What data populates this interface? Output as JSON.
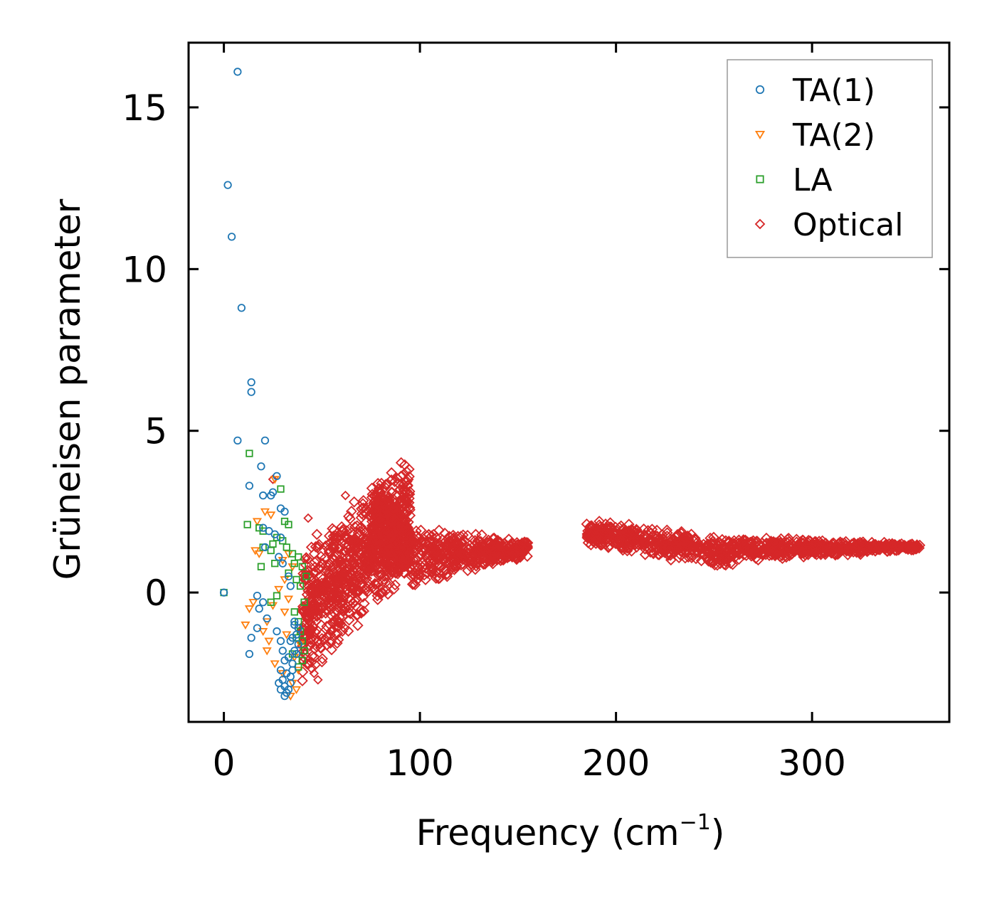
{
  "chart_data": {
    "type": "scatter",
    "title": "",
    "xlabel": "Frequency (cm",
    "xlabel_sup": "−1",
    "xlabel_close": ")",
    "ylabel": "Grüneisen parameter",
    "xlim": [
      -18,
      370
    ],
    "ylim": [
      -4,
      17
    ],
    "xticks": [
      0,
      100,
      200,
      300
    ],
    "yticks": [
      0,
      5,
      10,
      15
    ],
    "legend_position": "top-right",
    "series": [
      {
        "name": "TA(1)",
        "marker": "circle",
        "color": "#1f77b4",
        "points": [
          [
            7,
            16.1
          ],
          [
            2,
            12.6
          ],
          [
            4,
            11
          ],
          [
            9,
            8.8
          ],
          [
            14,
            6.5
          ],
          [
            14,
            6.2
          ],
          [
            7,
            4.7
          ],
          [
            21,
            4.7
          ],
          [
            19,
            3.9
          ],
          [
            13,
            3.3
          ],
          [
            27,
            3.6
          ],
          [
            25,
            3.1
          ],
          [
            24,
            3.0
          ],
          [
            20,
            3.0
          ],
          [
            29,
            2.6
          ],
          [
            31,
            2.5
          ],
          [
            20,
            2.0
          ],
          [
            23,
            1.9
          ],
          [
            26,
            1.8
          ],
          [
            29,
            1.7
          ],
          [
            21,
            1.4
          ],
          [
            28,
            1.1
          ],
          [
            30,
            0.9
          ],
          [
            33,
            0.5
          ],
          [
            34,
            0.2
          ],
          [
            0,
            0
          ],
          [
            17,
            -0.1
          ],
          [
            20,
            -0.3
          ],
          [
            18,
            -0.5
          ],
          [
            22,
            -0.8
          ],
          [
            17,
            -1.1
          ],
          [
            14,
            -1.4
          ],
          [
            13,
            -1.9
          ],
          [
            27,
            -1.2
          ],
          [
            29,
            -1.5
          ],
          [
            30,
            -1.8
          ],
          [
            31,
            -2.1
          ],
          [
            29,
            -2.4
          ],
          [
            30,
            -2.7
          ],
          [
            31,
            -2.9
          ],
          [
            32,
            -3.1
          ],
          [
            33,
            -3.0
          ],
          [
            34,
            -2.6
          ],
          [
            35,
            -2.2
          ],
          [
            36,
            -1.8
          ],
          [
            35,
            -1.4
          ],
          [
            36,
            -1.0
          ],
          [
            34,
            -1.5
          ],
          [
            33,
            -2.0
          ],
          [
            32,
            -2.5
          ],
          [
            28,
            -2.8
          ],
          [
            29,
            -3.0
          ],
          [
            31,
            -3.2
          ],
          [
            34,
            -2.8
          ],
          [
            35,
            -2.4
          ],
          [
            37,
            -1.9
          ],
          [
            37,
            -1.3
          ],
          [
            36,
            -0.9
          ],
          [
            38,
            -1.1
          ],
          [
            38,
            -1.6
          ]
        ]
      },
      {
        "name": "TA(2)",
        "marker": "triangle-down",
        "color": "#ff7f0e",
        "points": [
          [
            26,
            3.5
          ],
          [
            21,
            2.5
          ],
          [
            17,
            2.2
          ],
          [
            24,
            2.4
          ],
          [
            16,
            1.3
          ],
          [
            18,
            1.2
          ],
          [
            30,
            1.0
          ],
          [
            33,
            1.2
          ],
          [
            35,
            0.8
          ],
          [
            31,
            0.4
          ],
          [
            28,
            0.1
          ],
          [
            33,
            -0.2
          ],
          [
            15,
            -0.3
          ],
          [
            13,
            -0.5
          ],
          [
            25,
            -0.4
          ],
          [
            31,
            -0.6
          ],
          [
            22,
            -0.9
          ],
          [
            11,
            -1.0
          ],
          [
            20,
            -1.2
          ],
          [
            23,
            -1.5
          ],
          [
            22,
            -1.8
          ],
          [
            26,
            -2.2
          ],
          [
            30,
            -2.5
          ],
          [
            35,
            -2.8
          ],
          [
            37,
            -3.0
          ],
          [
            34,
            -3.2
          ],
          [
            36,
            -2.0
          ],
          [
            39,
            -1.6
          ],
          [
            38,
            -2.4
          ],
          [
            32,
            -1.3
          ]
        ]
      },
      {
        "name": "LA",
        "marker": "square",
        "color": "#2ca02c",
        "points": [
          [
            0,
            0
          ],
          [
            13,
            4.3
          ],
          [
            29,
            3.2
          ],
          [
            31,
            2.2
          ],
          [
            33,
            2.1
          ],
          [
            12,
            2.1
          ],
          [
            18,
            2.0
          ],
          [
            20,
            1.9
          ],
          [
            27,
            1.7
          ],
          [
            30,
            1.6
          ],
          [
            25,
            1.5
          ],
          [
            20,
            1.4
          ],
          [
            32,
            1.4
          ],
          [
            24,
            1.3
          ],
          [
            35,
            1.2
          ],
          [
            38,
            1.1
          ],
          [
            36,
            0.9
          ],
          [
            19,
            0.8
          ],
          [
            26,
            0.9
          ],
          [
            33,
            0.6
          ],
          [
            37,
            0.4
          ],
          [
            39,
            0.2
          ],
          [
            27,
            -0.1
          ],
          [
            24,
            -0.3
          ],
          [
            36,
            -0.6
          ],
          [
            38,
            -0.9
          ],
          [
            39,
            -1.2
          ],
          [
            40,
            -1.5
          ],
          [
            41,
            -1.8
          ],
          [
            40,
            -2.1
          ],
          [
            38,
            -2.3
          ],
          [
            35,
            -1.9
          ],
          [
            37,
            -1.4
          ],
          [
            41,
            -0.3
          ],
          [
            40,
            0.8
          ],
          [
            42,
            0.5
          ]
        ]
      },
      {
        "name": "Optical",
        "marker": "diamond",
        "color": "#d62728",
        "points": [
          [
            25,
            3.5
          ],
          [
            43,
            2.3
          ],
          [
            62,
            3.0
          ],
          [
            42,
            1.1
          ],
          [
            45,
            -0.4
          ],
          [
            44,
            -1.3
          ],
          [
            46,
            -2.5
          ],
          [
            48,
            -2.7
          ],
          [
            50,
            -1.4
          ],
          [
            55,
            -1.2
          ],
          [
            60,
            -1.0
          ],
          [
            64,
            -0.5
          ],
          [
            68,
            -0.2
          ],
          [
            70,
            0.6
          ],
          [
            77,
            0.3
          ],
          [
            80,
            1.0
          ]
        ],
        "clouds": [
          {
            "x": [
              40,
              95
            ],
            "y_lo": [
              -2.9,
              0.5
            ],
            "y_hi": [
              1.5,
              4.4
            ],
            "n": 900
          },
          {
            "x": [
              75,
              95
            ],
            "y_lo": [
              0.6,
              0.4
            ],
            "y_hi": [
              3.6,
              2.2
            ],
            "n": 300
          },
          {
            "x": [
              95,
              155
            ],
            "y_lo": [
              0.0,
              1.1
            ],
            "y_hi": [
              2.2,
              1.6
            ],
            "n": 450
          },
          {
            "x": [
              185,
              260
            ],
            "y_lo": [
              1.4,
              0.7
            ],
            "y_hi": [
              2.3,
              1.7
            ],
            "n": 450
          },
          {
            "x": [
              260,
              355
            ],
            "y_lo": [
              0.9,
              1.3
            ],
            "y_hi": [
              1.8,
              1.5
            ],
            "n": 500
          }
        ]
      }
    ]
  }
}
